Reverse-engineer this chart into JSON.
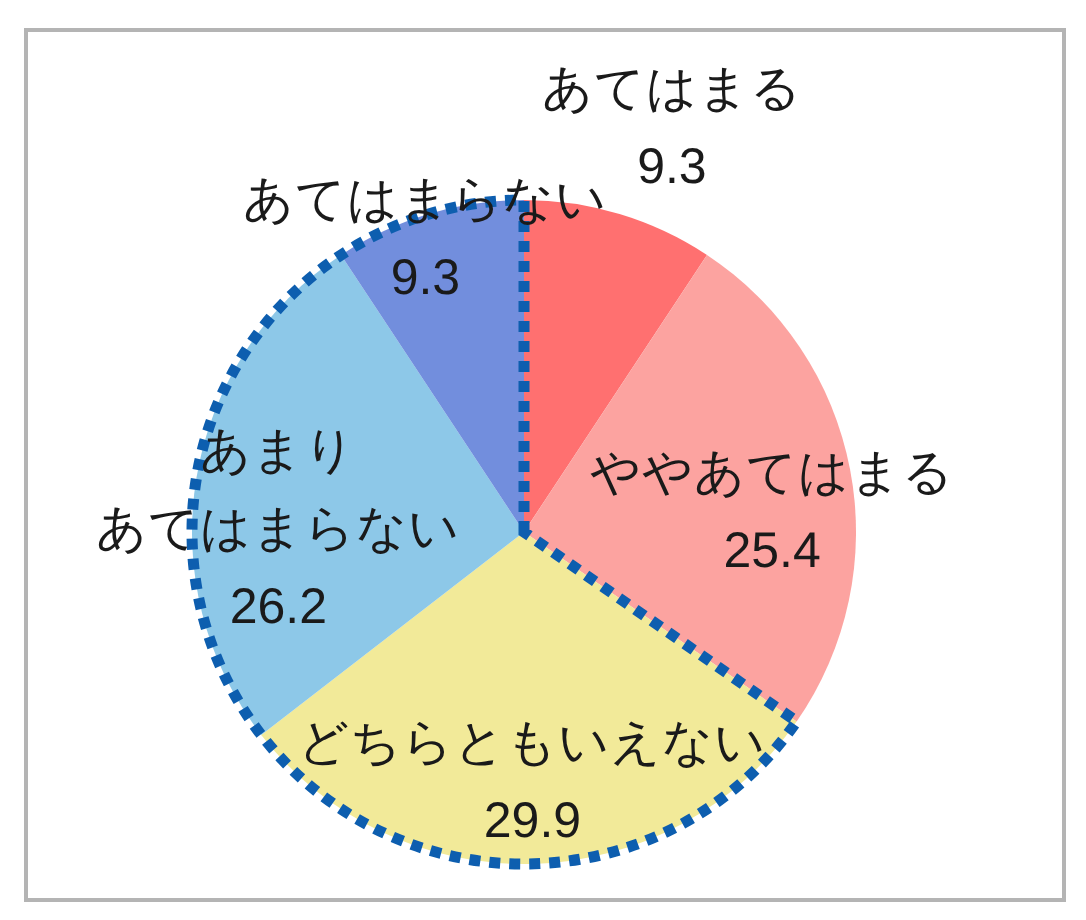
{
  "chart_data": {
    "type": "pie",
    "categories": [
      "あてはまる",
      "ややあてはまる",
      "どちらともいえない",
      "あまりあてはまらない",
      "あてはまらない"
    ],
    "values": [
      9.3,
      25.4,
      29.9,
      26.2,
      9.3
    ],
    "colors": [
      "#ff7070",
      "#fca3a0",
      "#f2ea99",
      "#8dc8e8",
      "#728edd"
    ],
    "data_labels": true
  }
}
